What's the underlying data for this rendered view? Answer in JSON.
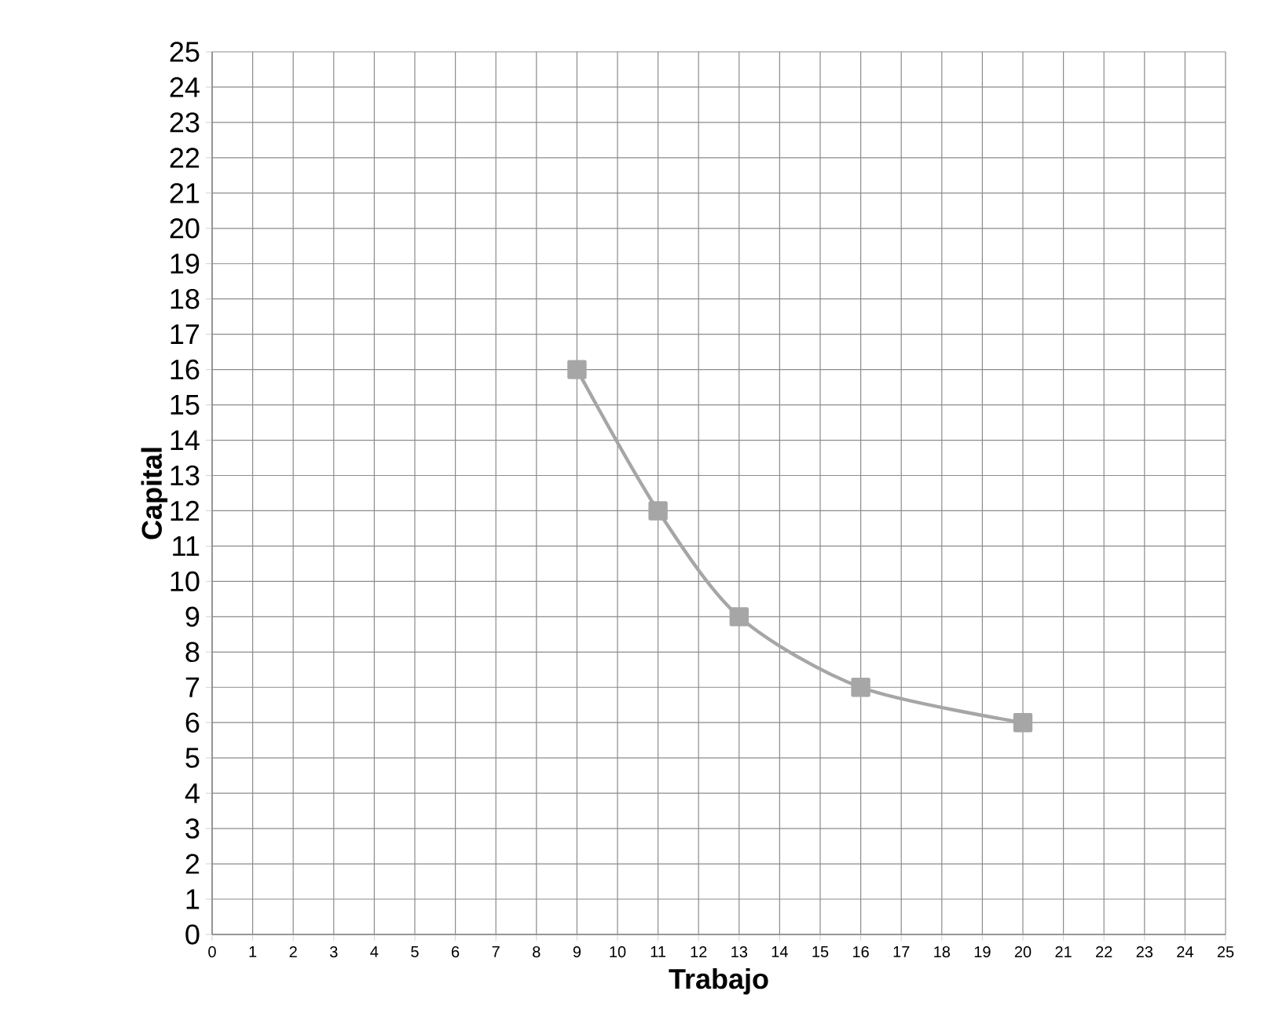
{
  "chart_data": {
    "type": "line",
    "xlabel": "Trabajo",
    "ylabel": "Capital",
    "x": [
      9,
      11,
      13,
      16,
      20
    ],
    "series": [
      {
        "color": "#a6a6a6",
        "values": [
          16,
          12,
          9,
          7,
          6
        ]
      }
    ],
    "xlim": [
      0,
      25
    ],
    "ylim": [
      0,
      25
    ],
    "xticks": [
      0,
      1,
      2,
      3,
      4,
      5,
      6,
      7,
      8,
      9,
      10,
      11,
      12,
      13,
      14,
      15,
      16,
      17,
      18,
      19,
      20,
      21,
      22,
      23,
      24,
      25
    ],
    "yticks": [
      0,
      1,
      2,
      3,
      4,
      5,
      6,
      7,
      8,
      9,
      10,
      11,
      12,
      13,
      14,
      15,
      16,
      17,
      18,
      19,
      20,
      21,
      22,
      23,
      24,
      25
    ],
    "grid": true,
    "marker": "square",
    "line_style": "solid"
  }
}
